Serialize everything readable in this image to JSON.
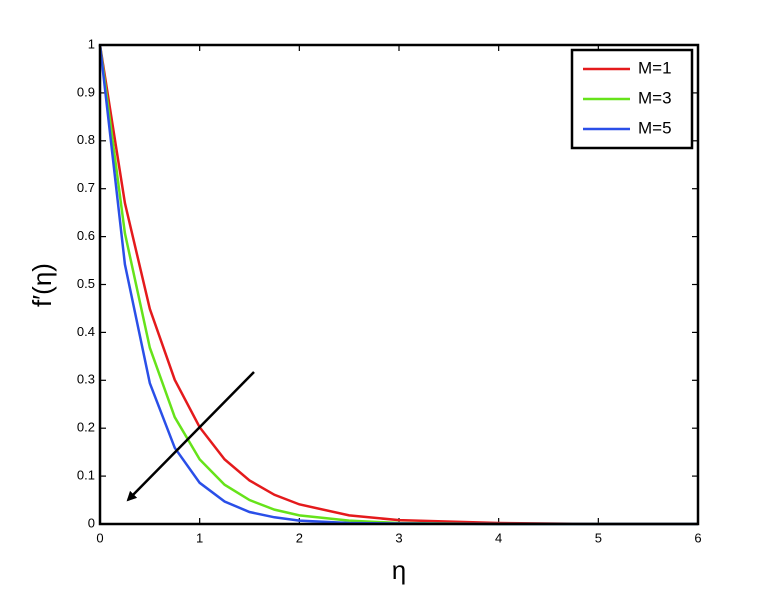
{
  "chart_data": {
    "type": "line",
    "x": [
      0,
      0.25,
      0.5,
      0.75,
      1,
      1.25,
      1.5,
      1.75,
      2,
      2.5,
      3,
      4,
      5,
      6
    ],
    "series": [
      {
        "name": "M=1",
        "color": "#e41a1c",
        "values": [
          1,
          0.67,
          0.449,
          0.301,
          0.202,
          0.135,
          0.091,
          0.061,
          0.041,
          0.018,
          0.008,
          0.002,
          0,
          0
        ]
      },
      {
        "name": "M=3",
        "color": "#66e31a",
        "values": [
          1,
          0.607,
          0.368,
          0.223,
          0.135,
          0.082,
          0.05,
          0.03,
          0.018,
          0.007,
          0.002,
          0,
          0,
          0
        ]
      },
      {
        "name": "M=5",
        "color": "#2a4fe8",
        "values": [
          1,
          0.542,
          0.294,
          0.159,
          0.086,
          0.047,
          0.025,
          0.014,
          0.007,
          0.002,
          0.001,
          0,
          0,
          0
        ]
      }
    ],
    "xlabel": "η",
    "ylabel": "f′(η)",
    "xlim": [
      0,
      6
    ],
    "xticks": [
      0,
      1,
      2,
      3,
      4,
      5,
      6
    ],
    "ylim": [
      0,
      1
    ],
    "yticks": [
      0,
      0.1,
      0.2,
      0.3,
      0.4,
      0.5,
      0.6,
      0.7,
      0.8,
      0.9,
      1
    ],
    "legend": "upper right"
  }
}
